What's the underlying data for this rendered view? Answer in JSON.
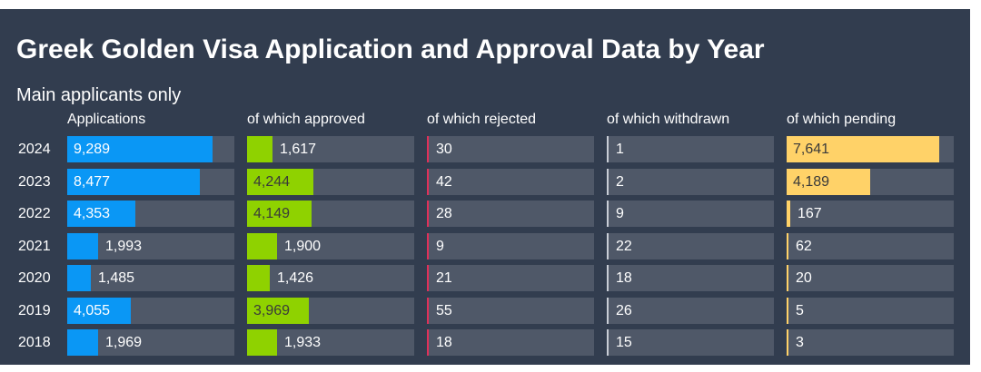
{
  "chart_data": {
    "type": "table",
    "title": "Greek Golden Visa Application and Approval Data by Year",
    "subtitle": "Main applicants only",
    "years": [
      "2024",
      "2023",
      "2022",
      "2021",
      "2020",
      "2019",
      "2018"
    ],
    "columns": [
      {
        "label": "Applications",
        "color": "#0a97f5",
        "text_dark": false,
        "max": 10700,
        "values": [
          9289,
          8477,
          4353,
          1993,
          1485,
          4055,
          1969
        ],
        "labels": [
          "9,289",
          "8,477",
          "4,353",
          "1,993",
          "1,485",
          "4,055",
          "1,969"
        ]
      },
      {
        "label": "of which approved",
        "color": "#8fd200",
        "text_dark": true,
        "max": 10700,
        "values": [
          1617,
          4244,
          4149,
          1900,
          1426,
          3969,
          1933
        ],
        "labels": [
          "1,617",
          "4,244",
          "4,149",
          "1,900",
          "1,426",
          "3,969",
          "1,933"
        ]
      },
      {
        "label": "of which rejected",
        "color": "#e0305a",
        "text_dark": false,
        "max": 10700,
        "values": [
          30,
          42,
          28,
          9,
          21,
          55,
          18
        ],
        "labels": [
          "30",
          "42",
          "28",
          "9",
          "21",
          "55",
          "18"
        ]
      },
      {
        "label": "of which withdrawn",
        "color": "#c8cdd6",
        "text_dark": false,
        "max": 10700,
        "values": [
          1,
          2,
          9,
          22,
          18,
          26,
          15
        ],
        "labels": [
          "1",
          "2",
          "9",
          "22",
          "18",
          "26",
          "15"
        ]
      },
      {
        "label": "of which pending",
        "color": "#ffd268",
        "text_dark": true,
        "max": 8380,
        "values": [
          7641,
          4189,
          167,
          62,
          20,
          5,
          3
        ],
        "labels": [
          "7,641",
          "4,189",
          "167",
          "62",
          "20",
          "5",
          "3"
        ]
      }
    ]
  }
}
